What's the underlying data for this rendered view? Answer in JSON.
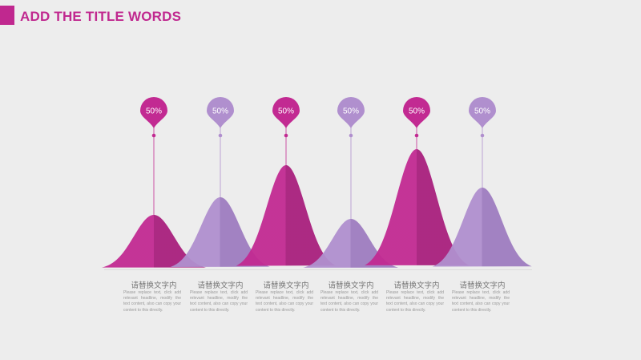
{
  "colors": {
    "magenta": "#c22a92",
    "magenta_dark": "#a91f7d",
    "lavender": "#b08fce",
    "lavender_dark": "#9e7cc0",
    "title": "#c0288f"
  },
  "header": {
    "title": "ADD THE TITLE WORDS"
  },
  "chart_data": {
    "type": "area",
    "series": [
      {
        "title": "请替换文字内",
        "value": 50,
        "value_label": "50%",
        "color": "magenta",
        "description": "Please replace text, click add relevant headline, modify the text content, also can copy your content to this directly."
      },
      {
        "title": "请替换文字内",
        "value": 50,
        "value_label": "50%",
        "color": "lavender",
        "description": "Please replace text, click add relevant headline, modify the text content, also can copy your content to this directly."
      },
      {
        "title": "请替换文字内",
        "value": 50,
        "value_label": "50%",
        "color": "magenta",
        "description": "Please replace text, click add relevant headline, modify the text content, also can copy your content to this directly."
      },
      {
        "title": "请替换文字内",
        "value": 50,
        "value_label": "50%",
        "color": "lavender",
        "description": "Please replace text, click add relevant headline, modify the text content, also can copy your content to this directly."
      },
      {
        "title": "请替换文字内",
        "value": 50,
        "value_label": "50%",
        "color": "magenta",
        "description": "Please replace text, click add relevant headline, modify the text content, also can copy your content to this directly."
      },
      {
        "title": "请替换文字内",
        "value": 50,
        "value_label": "50%",
        "color": "lavender",
        "description": "Please replace text, click add relevant headline, modify the text content, also can copy your content to this directly."
      }
    ]
  }
}
